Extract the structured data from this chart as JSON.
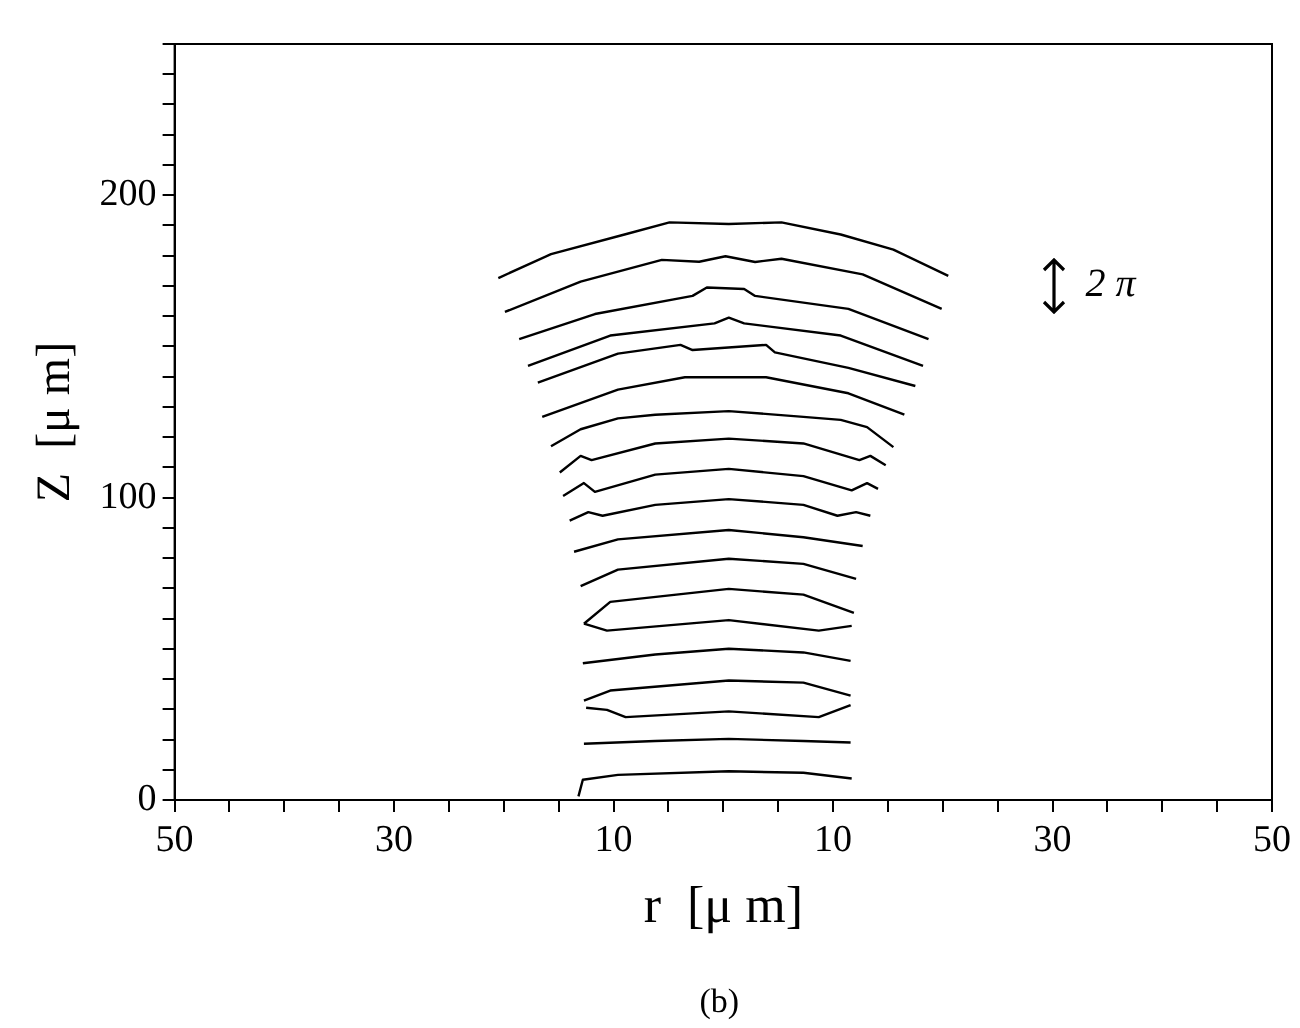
{
  "chart_data": {
    "type": "line",
    "xlabel": "r  [μ m]",
    "ylabel": "Z  [μ m]",
    "annotations": [
      "2 π",
      "(b)"
    ],
    "xlim": [
      -50,
      50
    ],
    "ylim": [
      0,
      250
    ],
    "xticks": [
      {
        "value": -50,
        "label": "50"
      },
      {
        "value": -45,
        "label": null
      },
      {
        "value": -40,
        "label": null
      },
      {
        "value": -35,
        "label": null
      },
      {
        "value": -30,
        "label": "30"
      },
      {
        "value": -25,
        "label": null
      },
      {
        "value": -20,
        "label": null
      },
      {
        "value": -15,
        "label": null
      },
      {
        "value": -10,
        "label": "10"
      },
      {
        "value": -5,
        "label": null
      },
      {
        "value": 0,
        "label": null
      },
      {
        "value": 5,
        "label": null
      },
      {
        "value": 10,
        "label": "10"
      },
      {
        "value": 15,
        "label": null
      },
      {
        "value": 20,
        "label": null
      },
      {
        "value": 25,
        "label": null
      },
      {
        "value": 30,
        "label": "30"
      },
      {
        "value": 35,
        "label": null
      },
      {
        "value": 40,
        "label": null
      },
      {
        "value": 45,
        "label": null
      },
      {
        "value": 50,
        "label": "50"
      }
    ],
    "yticks": [
      0,
      {
        "value": 10,
        "label": null
      },
      {
        "value": 20,
        "label": null
      },
      {
        "value": 30,
        "label": null
      },
      {
        "value": 40,
        "label": null
      },
      {
        "value": 50,
        "label": null
      },
      {
        "value": 60,
        "label": null
      },
      {
        "value": 70,
        "label": null
      },
      {
        "value": 80,
        "label": null
      },
      {
        "value": 90,
        "label": null
      },
      100,
      {
        "value": 110,
        "label": null
      },
      {
        "value": 120,
        "label": null
      },
      {
        "value": 130,
        "label": null
      },
      {
        "value": 140,
        "label": null
      },
      {
        "value": 150,
        "label": null
      },
      {
        "value": 160,
        "label": null
      },
      {
        "value": 170,
        "label": null
      },
      {
        "value": 180,
        "label": null
      },
      {
        "value": 190,
        "label": null
      },
      200,
      {
        "value": 210,
        "label": null
      },
      {
        "value": 220,
        "label": null
      },
      {
        "value": 230,
        "label": null
      },
      {
        "value": 240,
        "label": null
      },
      {
        "value": 250,
        "label": null
      }
    ],
    "grid": false,
    "legend": false,
    "marker": "none",
    "line_style": "solid",
    "series": [
      {
        "color": "#000000",
        "x": [
          -20.5,
          -15.7,
          -9,
          -4.9,
          0.5,
          5.3,
          10.7,
          15.5,
          20.5
        ],
        "values": [
          172.6,
          180.5,
          187,
          191,
          190.5,
          191,
          187,
          182,
          173.3
        ]
      },
      {
        "color": "#000000",
        "x": [
          -19.9,
          -13,
          -5.6,
          -2.2,
          0.2,
          2.9,
          5.3,
          12.7,
          19.9
        ],
        "values": [
          161.4,
          171.4,
          178.6,
          178,
          179.8,
          177.9,
          179,
          173.8,
          162.4
        ]
      },
      {
        "color": "#000000",
        "x": [
          -18.6,
          -11.7,
          -2.8,
          -1.5,
          1.9,
          2.9,
          11.4,
          18.7
        ],
        "values": [
          152.4,
          160.7,
          166.7,
          169.5,
          169,
          166.7,
          162.4,
          152.4
        ]
      },
      {
        "color": "#000000",
        "x": [
          -17.8,
          -10.3,
          -0.8,
          0.5,
          1.9,
          10.7,
          18.2
        ],
        "values": [
          143.6,
          153.6,
          157.6,
          159.5,
          157.6,
          153.6,
          143.6
        ]
      },
      {
        "color": "#000000",
        "x": [
          -16.9,
          -9.6,
          -3.9,
          -2.8,
          3.9,
          4.7,
          11.4,
          17.5
        ],
        "values": [
          138,
          147.6,
          150.5,
          148.8,
          150.5,
          148,
          142.9,
          136.9
        ]
      },
      {
        "color": "#000000",
        "x": [
          -16.5,
          -9.6,
          -3.5,
          3.9,
          11.4,
          16.5
        ],
        "values": [
          126.7,
          135.7,
          139.8,
          139.8,
          134.5,
          127.4
        ]
      },
      {
        "color": "#000000",
        "x": [
          -15.7,
          -13,
          -9.6,
          -6.2,
          0.5,
          7.3,
          10.7,
          13.1,
          15.5
        ],
        "values": [
          117,
          122.6,
          126.2,
          127.4,
          128.6,
          126.7,
          125.7,
          123.3,
          116.7
        ]
      },
      {
        "color": "#000000",
        "x": [
          -14.9,
          -13,
          -12,
          -6.2,
          0.5,
          7.3,
          12.4,
          13.4,
          14.8
        ],
        "values": [
          108.3,
          113.8,
          112.4,
          117.9,
          119.5,
          117.9,
          112.4,
          113.8,
          110.7
        ]
      },
      {
        "color": "#000000",
        "x": [
          -14.6,
          -12.7,
          -11.7,
          -6.2,
          0.5,
          7.3,
          11.7,
          13.1,
          14.1
        ],
        "values": [
          100.5,
          104.8,
          101.9,
          107.6,
          109.5,
          107.1,
          102.4,
          104.8,
          102.9
        ]
      },
      {
        "color": "#000000",
        "x": [
          -14,
          -12.3,
          -11,
          -6.2,
          0.5,
          7.3,
          10.4,
          12.1,
          13.4
        ],
        "values": [
          92.4,
          95.2,
          94,
          97.6,
          99.5,
          97.6,
          94,
          95.2,
          94
        ]
      },
      {
        "color": "#000000",
        "x": [
          -13.6,
          -9.6,
          0.5,
          7.3,
          12.7
        ],
        "values": [
          82.1,
          86.2,
          89.3,
          86.9,
          84
        ]
      },
      {
        "color": "#000000",
        "x": [
          -13,
          -9.6,
          0.5,
          7.3,
          12.1
        ],
        "values": [
          70.7,
          76.2,
          79.8,
          78.1,
          73.1
        ]
      },
      {
        "color": "#000000",
        "x": [
          -12.7,
          -10.3,
          0.5,
          7.3,
          11.9
        ],
        "values": [
          58.3,
          65.5,
          69.8,
          67.9,
          61.9
        ]
      },
      {
        "color": "#000000",
        "x": [
          -12.7,
          -10.6,
          0.5,
          8.7,
          11.7
        ],
        "values": [
          58.3,
          56,
          59.5,
          56,
          57.6
        ]
      },
      {
        "color": "#000000",
        "x": [
          -12.8,
          -6.2,
          0.5,
          7.3,
          11.6
        ],
        "values": [
          45.2,
          48.1,
          50,
          48.8,
          46
        ]
      },
      {
        "color": "#000000",
        "x": [
          -12.7,
          -10.3,
          0.5,
          7.3,
          11.6
        ],
        "values": [
          32.9,
          36.2,
          39.5,
          38.8,
          34.5
        ]
      },
      {
        "color": "#000000",
        "x": [
          -12.5,
          -10.6,
          -8.9,
          0.5,
          8.7,
          11.6
        ],
        "values": [
          30.5,
          29.8,
          27.4,
          29.3,
          27.4,
          31.4
        ]
      },
      {
        "color": "#000000",
        "x": [
          -12.7,
          -6.2,
          0.5,
          7.3,
          11.6
        ],
        "values": [
          18.6,
          19.5,
          20.2,
          19.5,
          19
        ]
      },
      {
        "color": "#000000",
        "x": [
          -13.2,
          -12.8,
          -9.6,
          0.5,
          7.3,
          11.7
        ],
        "values": [
          1.2,
          6.7,
          8.3,
          9.5,
          9,
          7.1
        ]
      }
    ]
  }
}
